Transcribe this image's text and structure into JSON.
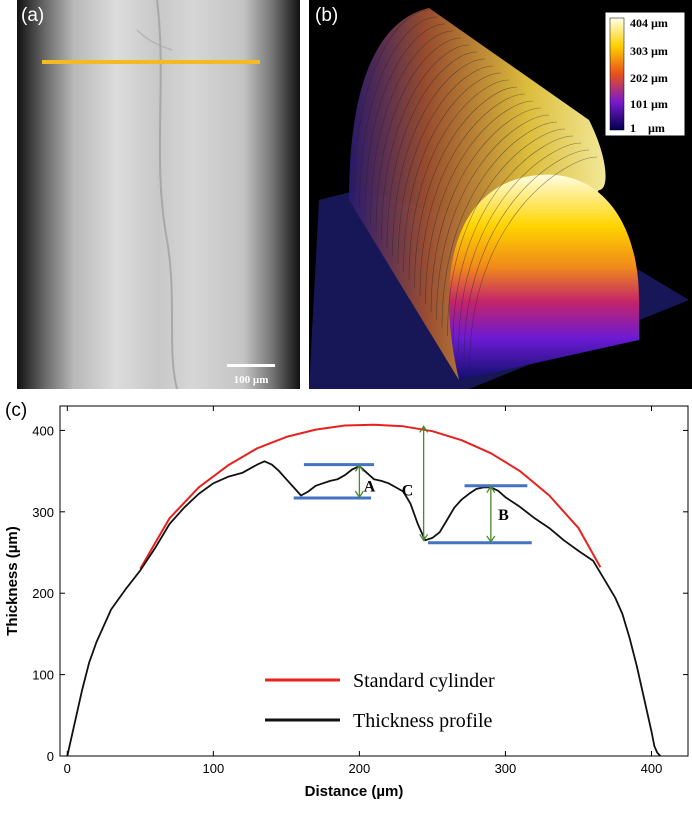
{
  "panels": {
    "a_label": "(a)",
    "b_label": "(b)",
    "c_label": "(c)"
  },
  "panel_a": {
    "scale_bar_label": "100 µm",
    "line_color": "#f5b922"
  },
  "panel_b": {
    "colorbar_ticks": [
      "404 µm",
      "303 µm",
      "202 µm",
      "101 µm",
      "1    µm"
    ]
  },
  "chart_data": {
    "type": "line",
    "title": "",
    "xlabel": "Distance (µm)",
    "ylabel": "Thickness (µm)",
    "xlim": [
      -5,
      425
    ],
    "ylim": [
      0,
      430
    ],
    "xticks": [
      0,
      100,
      200,
      300,
      400
    ],
    "yticks": [
      0,
      100,
      200,
      300,
      400
    ],
    "legend": {
      "placement": "bottom-center"
    },
    "series": [
      {
        "name": "Standard cylinder",
        "color": "#e8211f",
        "x": [
          50,
          70,
          90,
          110,
          130,
          150,
          170,
          190,
          210,
          230,
          250,
          270,
          290,
          310,
          330,
          350,
          365
        ],
        "y": [
          230,
          292,
          330,
          357,
          378,
          392,
          401,
          406,
          407,
          405,
          399,
          388,
          372,
          350,
          320,
          280,
          232
        ]
      },
      {
        "name": "Thickness profile",
        "color": "#111111",
        "x": [
          0,
          5,
          10,
          15,
          20,
          30,
          40,
          50,
          60,
          70,
          80,
          90,
          100,
          110,
          120,
          130,
          135,
          140,
          145,
          150,
          155,
          160,
          165,
          170,
          175,
          180,
          185,
          190,
          195,
          200,
          205,
          210,
          215,
          220,
          225,
          230,
          235,
          240,
          245,
          250,
          255,
          260,
          265,
          270,
          275,
          280,
          285,
          290,
          295,
          300,
          310,
          320,
          330,
          340,
          350,
          360,
          370,
          375,
          380,
          385,
          390,
          395,
          400,
          402,
          404,
          406
        ],
        "y": [
          0,
          40,
          80,
          115,
          140,
          180,
          205,
          228,
          255,
          285,
          305,
          322,
          335,
          343,
          348,
          358,
          362,
          358,
          350,
          340,
          330,
          320,
          325,
          332,
          335,
          338,
          340,
          345,
          352,
          356,
          348,
          340,
          338,
          335,
          330,
          325,
          310,
          285,
          265,
          268,
          275,
          290,
          305,
          315,
          322,
          328,
          330,
          330,
          326,
          318,
          306,
          292,
          280,
          265,
          252,
          240,
          210,
          195,
          175,
          145,
          110,
          70,
          30,
          12,
          4,
          0
        ]
      }
    ],
    "annotations": [
      "A",
      "B",
      "C"
    ]
  }
}
